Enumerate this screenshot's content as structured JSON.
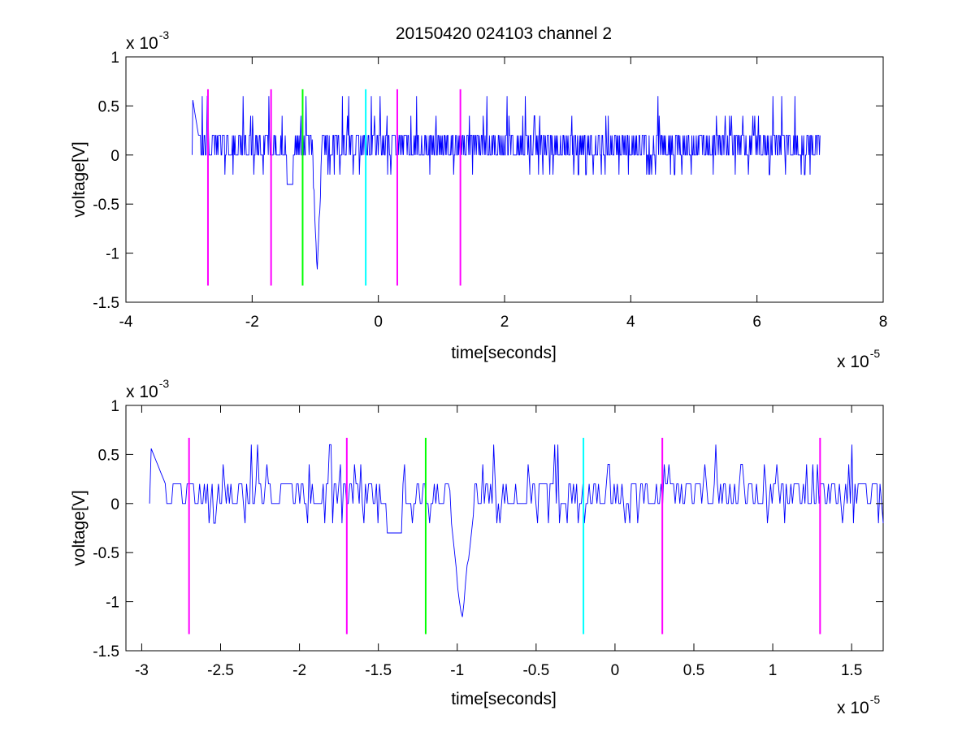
{
  "figure_title": "20150420 024103 channel 2",
  "colors": {
    "signal": "#0000ff",
    "marker": "#ff00ff",
    "marker_trigger": "#00ff00",
    "marker_zero": "#00ffff",
    "axes": "#000000"
  },
  "chart_data": [
    {
      "type": "line",
      "title": "20150420 024103 channel 2",
      "xlabel": "time[seconds]",
      "ylabel": "voltage[V]",
      "x_multiplier": "x 10",
      "x_exponent": "-5",
      "y_multiplier": "x 10",
      "y_exponent": "-3",
      "xlim": [
        -4,
        8
      ],
      "ylim": [
        -1.5,
        1
      ],
      "x_ticks": [
        -4,
        -2,
        0,
        2,
        4,
        6,
        8
      ],
      "x_tick_labels": [
        "-4",
        "-2",
        "0",
        "2",
        "4",
        "6",
        "8"
      ],
      "y_ticks": [
        -1.5,
        -1,
        -0.5,
        0,
        0.5,
        1
      ],
      "y_tick_labels": [
        "-1.5",
        "-1",
        "-0.5",
        "0",
        "0.5",
        "1"
      ],
      "grid": false,
      "signal": {
        "x_start": -2.95,
        "x_end": 7.0,
        "points": 1000,
        "baseline_levels": [
          0,
          0.2
        ],
        "peak_level": 0.6,
        "dip_level": -1.2,
        "dip_x": -0.97
      },
      "markers": [
        {
          "x": -2.7,
          "y_top": 0.67,
          "y_bottom": -1.33,
          "kind": "marker"
        },
        {
          "x": -1.7,
          "y_top": 0.67,
          "y_bottom": -1.33,
          "kind": "marker"
        },
        {
          "x": -1.2,
          "y_top": 0.67,
          "y_bottom": -1.33,
          "kind": "marker_trigger"
        },
        {
          "x": -0.2,
          "y_top": 0.67,
          "y_bottom": -1.33,
          "kind": "marker_zero"
        },
        {
          "x": 0.3,
          "y_top": 0.67,
          "y_bottom": -1.33,
          "kind": "marker"
        },
        {
          "x": 1.3,
          "y_top": 0.67,
          "y_bottom": -1.33,
          "kind": "marker"
        }
      ]
    },
    {
      "type": "line",
      "xlabel": "time[seconds]",
      "ylabel": "voltage[V]",
      "x_multiplier": "x 10",
      "x_exponent": "-5",
      "y_multiplier": "x 10",
      "y_exponent": "-3",
      "xlim": [
        -3.1,
        1.7
      ],
      "ylim": [
        -1.5,
        1
      ],
      "x_ticks": [
        -3,
        -2.5,
        -2,
        -1.5,
        -1,
        -0.5,
        0,
        0.5,
        1,
        1.5
      ],
      "x_tick_labels": [
        "-3",
        "-2.5",
        "-2",
        "-1.5",
        "-1",
        "-0.5",
        "0",
        "0.5",
        "1",
        "1.5"
      ],
      "y_ticks": [
        -1.5,
        -1,
        -0.5,
        0,
        0.5,
        1
      ],
      "y_tick_labels": [
        "-1.5",
        "-1",
        "-0.5",
        "0",
        "0.5",
        "1"
      ],
      "grid": false,
      "signal": {
        "x_start": -2.95,
        "x_end": 1.7,
        "points": 470,
        "baseline_levels": [
          0,
          0.2
        ],
        "peak_level": 0.6,
        "dip_level": -1.2,
        "dip_x": -0.97
      },
      "markers": [
        {
          "x": -2.7,
          "y_top": 0.67,
          "y_bottom": -1.33,
          "kind": "marker"
        },
        {
          "x": -1.7,
          "y_top": 0.67,
          "y_bottom": -1.33,
          "kind": "marker"
        },
        {
          "x": -1.2,
          "y_top": 0.67,
          "y_bottom": -1.33,
          "kind": "marker_trigger"
        },
        {
          "x": -0.2,
          "y_top": 0.67,
          "y_bottom": -1.33,
          "kind": "marker_zero"
        },
        {
          "x": 0.3,
          "y_top": 0.67,
          "y_bottom": -1.33,
          "kind": "marker"
        },
        {
          "x": 1.3,
          "y_top": 0.67,
          "y_bottom": -1.33,
          "kind": "marker"
        }
      ]
    }
  ]
}
